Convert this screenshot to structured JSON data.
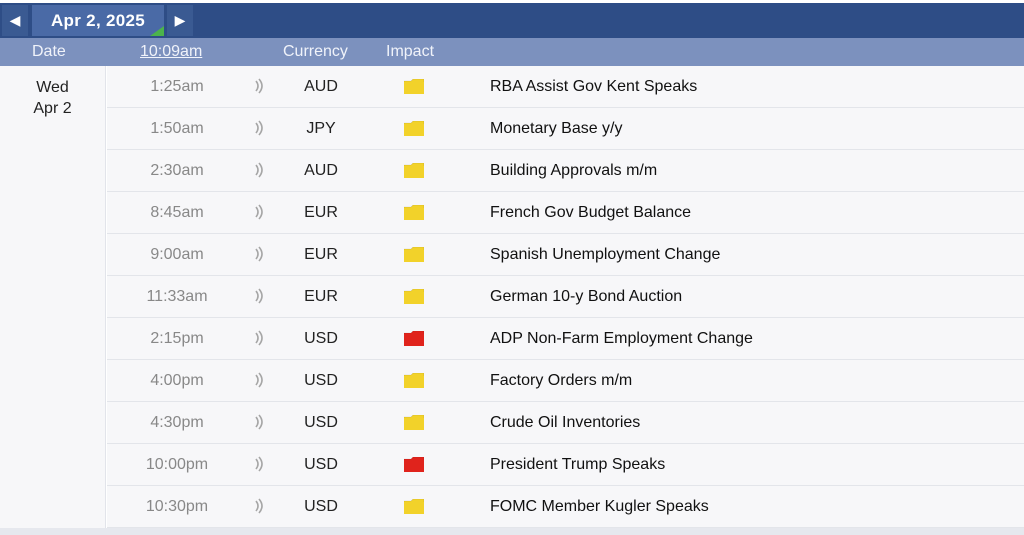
{
  "navigation": {
    "prev_icon": "chevron-left-icon",
    "next_icon": "chevron-right-icon",
    "date_label": "Apr 2, 2025"
  },
  "header": {
    "date": "Date",
    "time": "10:09am",
    "currency": "Currency",
    "impact": "Impact"
  },
  "day": {
    "weekday": "Wed",
    "date": "Apr 2"
  },
  "impact_colors": {
    "medium": "#f2d22a",
    "high": "#e0231c"
  },
  "events": [
    {
      "time": "1:25am",
      "currency": "AUD",
      "impact": "medium",
      "title": "RBA Assist Gov Kent Speaks"
    },
    {
      "time": "1:50am",
      "currency": "JPY",
      "impact": "medium",
      "title": "Monetary Base y/y"
    },
    {
      "time": "2:30am",
      "currency": "AUD",
      "impact": "medium",
      "title": "Building Approvals m/m"
    },
    {
      "time": "8:45am",
      "currency": "EUR",
      "impact": "medium",
      "title": "French Gov Budget Balance"
    },
    {
      "time": "9:00am",
      "currency": "EUR",
      "impact": "medium",
      "title": "Spanish Unemployment Change"
    },
    {
      "time": "11:33am",
      "currency": "EUR",
      "impact": "medium",
      "title": "German 10-y Bond Auction"
    },
    {
      "time": "2:15pm",
      "currency": "USD",
      "impact": "high",
      "title": "ADP Non-Farm Employment Change"
    },
    {
      "time": "4:00pm",
      "currency": "USD",
      "impact": "medium",
      "title": "Factory Orders m/m"
    },
    {
      "time": "4:30pm",
      "currency": "USD",
      "impact": "medium",
      "title": "Crude Oil Inventories"
    },
    {
      "time": "10:00pm",
      "currency": "USD",
      "impact": "high",
      "title": "President Trump Speaks"
    },
    {
      "time": "10:30pm",
      "currency": "USD",
      "impact": "medium",
      "title": "FOMC Member Kugler Speaks"
    }
  ]
}
